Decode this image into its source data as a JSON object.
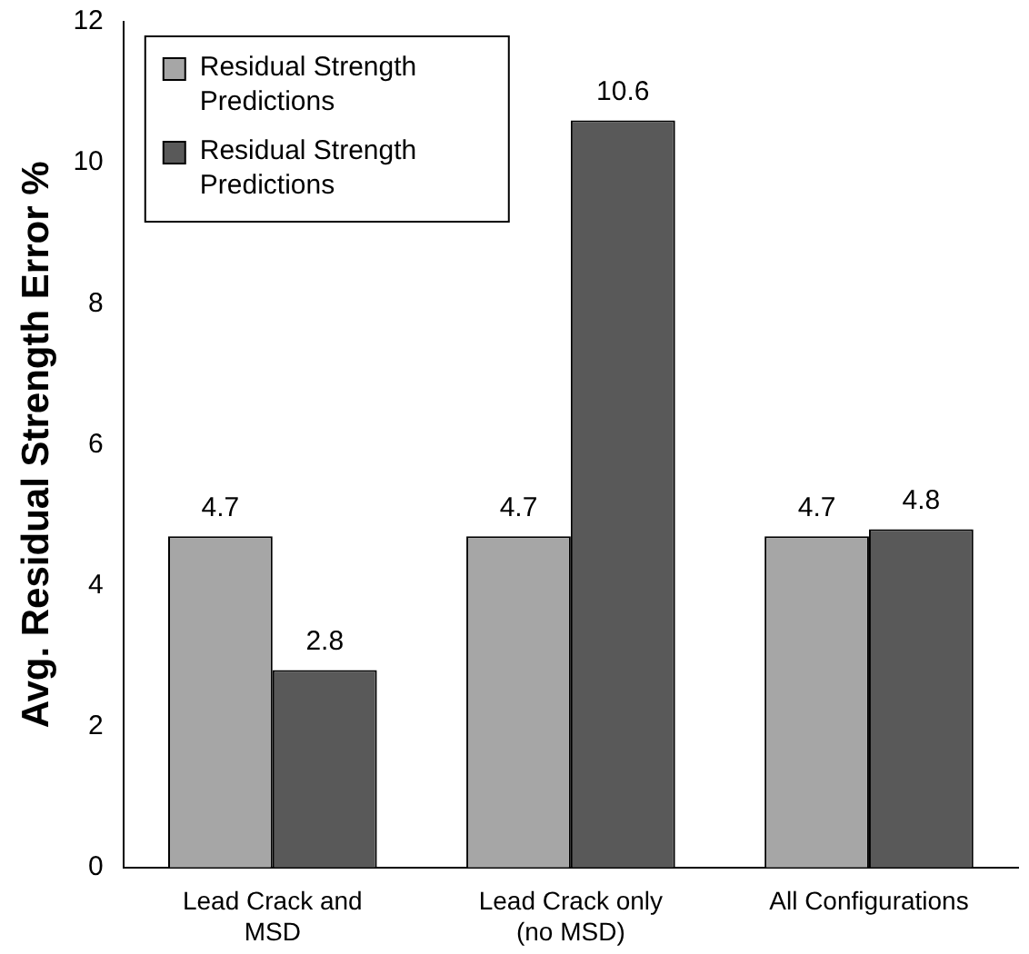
{
  "chart_data": {
    "type": "bar",
    "ylabel": "Avg. Residual Strength Error %",
    "categories": [
      "Lead Crack and MSD",
      "Lead Crack only (no MSD)",
      "All Configurations"
    ],
    "series": [
      {
        "name": "Residual Strength Predictions",
        "color": "#a6a6a6",
        "values": [
          4.7,
          4.7,
          4.7
        ]
      },
      {
        "name": "Residual Strength Predictions",
        "color": "#595959",
        "values": [
          2.8,
          10.6,
          4.8
        ]
      }
    ],
    "ylim": [
      0,
      12
    ],
    "yticks": [
      0,
      2,
      4,
      6,
      8,
      10,
      12
    ],
    "grid": false,
    "legend": "top left",
    "data_labels": true
  }
}
